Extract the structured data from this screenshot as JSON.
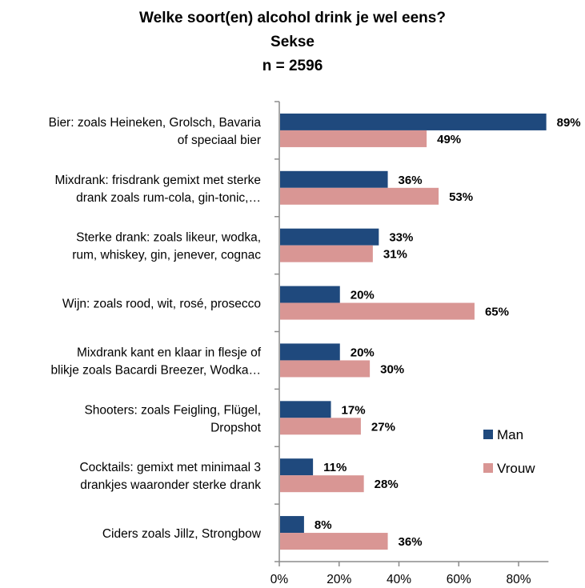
{
  "chart_data": {
    "type": "bar",
    "orientation": "horizontal",
    "title": [
      "Welke soort(en) alcohol drink je wel eens?",
      "Sekse",
      "n = 2596"
    ],
    "categories": [
      [
        "Bier: zoals Heineken, Grolsch, Bavaria",
        "of speciaal bier"
      ],
      [
        "Mixdrank: frisdrank gemixt met sterke",
        "drank zoals rum-cola, gin-tonic,…"
      ],
      [
        "Sterke drank: zoals likeur, wodka,",
        "rum, whiskey, gin, jenever, cognac"
      ],
      [
        "Wijn: zoals rood, wit, rosé, prosecco"
      ],
      [
        "Mixdrank kant en klaar in flesje of",
        "blikje zoals Bacardi Breezer, Wodka…"
      ],
      [
        "Shooters: zoals Feigling, Flügel,",
        "Dropshot"
      ],
      [
        "Cocktails: gemixt met minimaal 3",
        "drankjes waaronder sterke drank"
      ],
      [
        "Ciders zoals Jillz, Strongbow"
      ]
    ],
    "series": [
      {
        "name": "Man",
        "color": "#1f497d",
        "values": [
          89,
          36,
          33,
          20,
          20,
          17,
          11,
          8
        ]
      },
      {
        "name": "Vrouw",
        "color": "#d99694",
        "values": [
          49,
          53,
          31,
          65,
          30,
          27,
          28,
          36
        ]
      }
    ],
    "value_suffix": "%",
    "xlim": [
      0,
      90
    ],
    "xticks": [
      0,
      20,
      40,
      60,
      80
    ],
    "xtick_labels": [
      "0%",
      "20%",
      "40%",
      "60%",
      "80%"
    ],
    "legend_position": "right",
    "grid": false
  }
}
